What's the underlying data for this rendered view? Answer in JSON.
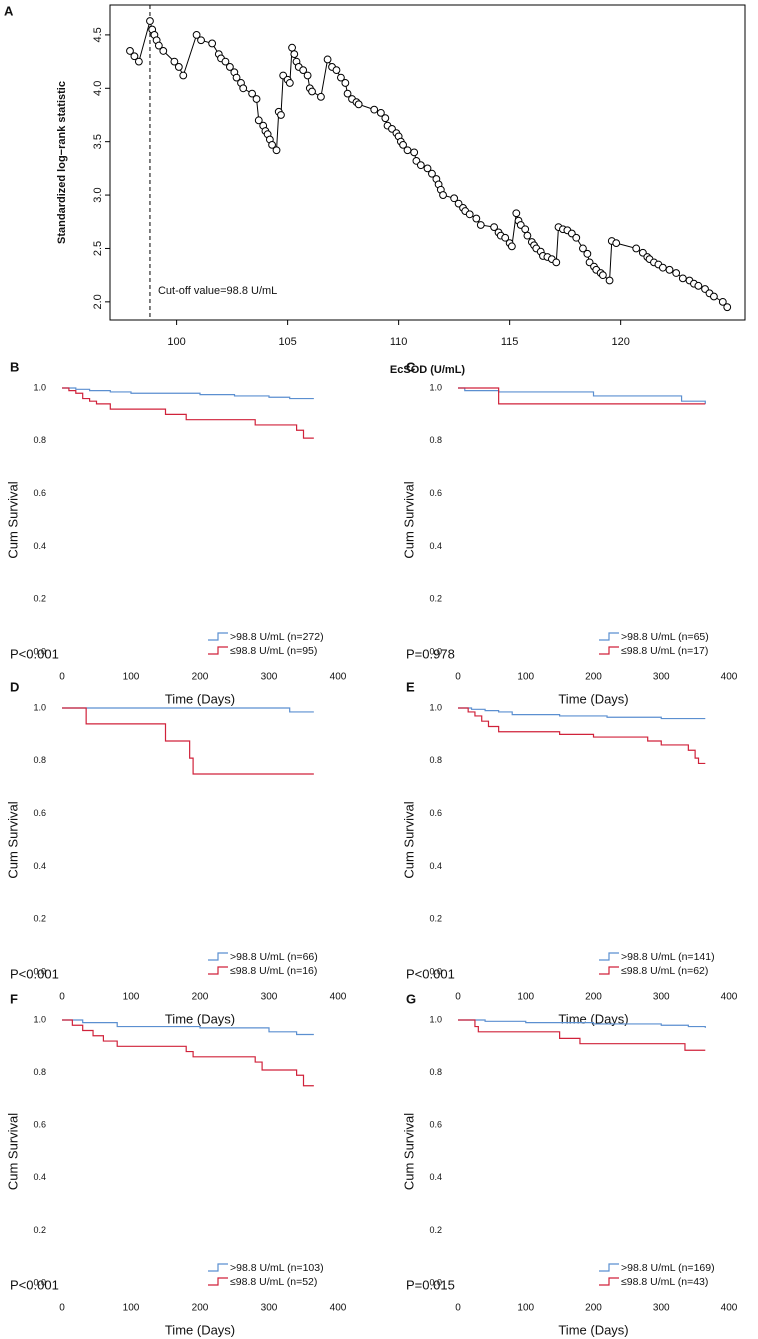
{
  "chart_data": [
    {
      "panel": "A",
      "type": "scatter",
      "xlabel": "EcSOD (U/mL)",
      "ylabel": "Standardized log−rank statistic",
      "xlim": [
        97.0,
        125.6
      ],
      "ylim": [
        1.83,
        4.78
      ],
      "xticks": [
        100,
        105,
        110,
        115,
        120
      ],
      "yticks": [
        {
          "value": 2.0,
          "label": "2.0"
        },
        2.5,
        {
          "value": 3.0,
          "label": "3.0"
        },
        3.5,
        {
          "value": 4.0,
          "label": "4.0"
        },
        4.5
      ],
      "cutoff": 98.8,
      "annotation": "Cut-off value=98.8 U/mL",
      "color": "#000000",
      "x": [
        97.9,
        98.1,
        98.3,
        98.8,
        98.9,
        99.0,
        99.1,
        99.2,
        99.4,
        99.9,
        100.1,
        100.3,
        100.9,
        101.1,
        101.6,
        101.9,
        102.0,
        102.2,
        102.4,
        102.6,
        102.7,
        102.9,
        103.0,
        103.4,
        103.6,
        103.7,
        103.9,
        104.0,
        104.1,
        104.2,
        104.3,
        104.5,
        104.6,
        104.7,
        104.8,
        105.0,
        105.1,
        105.2,
        105.3,
        105.4,
        105.5,
        105.7,
        105.9,
        106.0,
        106.1,
        106.5,
        106.8,
        107.0,
        107.2,
        107.4,
        107.6,
        107.7,
        107.9,
        108.1,
        108.2,
        108.9,
        109.2,
        109.4,
        109.5,
        109.7,
        109.9,
        110.0,
        110.1,
        110.2,
        110.4,
        110.7,
        110.8,
        111.0,
        111.3,
        111.5,
        111.7,
        111.8,
        111.9,
        112.0,
        112.5,
        112.7,
        112.9,
        113.0,
        113.2,
        113.5,
        113.7,
        114.3,
        114.5,
        114.6,
        114.8,
        115.0,
        115.1,
        115.3,
        115.4,
        115.5,
        115.7,
        115.8,
        116.0,
        116.1,
        116.2,
        116.4,
        116.5,
        116.7,
        116.9,
        117.1,
        117.2,
        117.4,
        117.6,
        117.8,
        118.0,
        118.3,
        118.5,
        118.6,
        118.8,
        118.9,
        119.1,
        119.2,
        119.5,
        119.6,
        119.8,
        120.7,
        121.0,
        121.2,
        121.3,
        121.5,
        121.7,
        121.9,
        122.2,
        122.5,
        122.8,
        123.1,
        123.3,
        123.5,
        123.8,
        124.0,
        124.2,
        124.6,
        124.8
      ],
      "values": [
        4.35,
        4.3,
        4.25,
        4.63,
        4.55,
        4.5,
        4.45,
        4.4,
        4.35,
        4.25,
        4.2,
        4.12,
        4.5,
        4.45,
        4.42,
        4.32,
        4.28,
        4.25,
        4.2,
        4.15,
        4.1,
        4.05,
        4.0,
        3.95,
        3.9,
        3.7,
        3.65,
        3.6,
        3.57,
        3.52,
        3.47,
        3.42,
        3.78,
        3.75,
        4.12,
        4.08,
        4.05,
        4.38,
        4.32,
        4.25,
        4.2,
        4.17,
        4.12,
        4.0,
        3.97,
        3.92,
        4.27,
        4.2,
        4.17,
        4.1,
        4.05,
        3.95,
        3.9,
        3.87,
        3.85,
        3.8,
        3.77,
        3.72,
        3.65,
        3.62,
        3.58,
        3.55,
        3.5,
        3.47,
        3.42,
        3.4,
        3.32,
        3.28,
        3.25,
        3.2,
        3.15,
        3.1,
        3.05,
        3.0,
        2.97,
        2.92,
        2.88,
        2.85,
        2.82,
        2.78,
        2.72,
        2.7,
        2.65,
        2.62,
        2.6,
        2.55,
        2.52,
        2.83,
        2.76,
        2.72,
        2.68,
        2.62,
        2.56,
        2.53,
        2.5,
        2.47,
        2.43,
        2.42,
        2.4,
        2.37,
        2.7,
        2.68,
        2.67,
        2.64,
        2.6,
        2.5,
        2.45,
        2.37,
        2.33,
        2.3,
        2.27,
        2.25,
        2.2,
        2.57,
        2.55,
        2.5,
        2.46,
        2.42,
        2.4,
        2.37,
        2.35,
        2.32,
        2.3,
        2.27,
        2.22,
        2.2,
        2.17,
        2.15,
        2.12,
        2.08,
        2.05,
        2.0,
        1.95
      ]
    },
    {
      "panel": "B",
      "type": "step",
      "xlabel": "Time (Days)",
      "ylabel": "Cum Survival",
      "pvalue": "P<0.001",
      "xlim": [
        0,
        400
      ],
      "ylim": [
        0,
        1
      ],
      "xticks": [
        0,
        100,
        200,
        300,
        400
      ],
      "yticks": [
        {
          "value": 0,
          "label": "0.0"
        },
        0.2,
        0.4,
        0.6,
        0.8,
        {
          "value": 1,
          "label": "1.0"
        }
      ],
      "series": [
        {
          "name": ">98.8 U/mL (n=272)",
          "color": "#5b8fd0",
          "x": [
            0,
            20,
            40,
            70,
            100,
            150,
            200,
            250,
            300,
            330,
            365
          ],
          "values": [
            1,
            0.995,
            0.99,
            0.985,
            0.98,
            0.98,
            0.975,
            0.97,
            0.965,
            0.96,
            0.96
          ]
        },
        {
          "name": "≤98.8 U/mL (n=95)",
          "color": "#d0223a",
          "x": [
            0,
            10,
            20,
            30,
            40,
            50,
            70,
            150,
            180,
            280,
            340,
            350,
            365
          ],
          "values": [
            1,
            0.99,
            0.98,
            0.96,
            0.95,
            0.94,
            0.92,
            0.9,
            0.88,
            0.86,
            0.84,
            0.81,
            0.81
          ]
        }
      ]
    },
    {
      "panel": "C",
      "type": "step",
      "xlabel": "Time (Days)",
      "ylabel": "Cum Survival",
      "pvalue": "P=0.978",
      "xlim": [
        0,
        400
      ],
      "ylim": [
        0,
        1
      ],
      "xticks": [
        0,
        100,
        200,
        300,
        400
      ],
      "yticks": [
        {
          "value": 0,
          "label": "0.0"
        },
        0.2,
        0.4,
        0.6,
        0.8,
        {
          "value": 1,
          "label": "1.0"
        }
      ],
      "series": [
        {
          "name": ">98.8 U/mL (n=65)",
          "color": "#5b8fd0",
          "x": [
            0,
            10,
            60,
            200,
            330,
            365
          ],
          "values": [
            1,
            0.99,
            0.985,
            0.97,
            0.95,
            0.94
          ]
        },
        {
          "name": "≤98.8 U/mL (n=17)",
          "color": "#d0223a",
          "x": [
            0,
            60,
            365
          ],
          "values": [
            1,
            0.94,
            0.94
          ]
        }
      ]
    },
    {
      "panel": "D",
      "type": "step",
      "xlabel": "Time (Days)",
      "ylabel": "Cum Survival",
      "pvalue": "P<0.001",
      "xlim": [
        0,
        400
      ],
      "ylim": [
        0,
        1
      ],
      "xticks": [
        0,
        100,
        200,
        300,
        400
      ],
      "yticks": [
        {
          "value": 0,
          "label": "0.0"
        },
        0.2,
        0.4,
        0.6,
        0.8,
        {
          "value": 1,
          "label": "1.0"
        }
      ],
      "series": [
        {
          "name": ">98.8 U/mL (n=66)",
          "color": "#5b8fd0",
          "x": [
            0,
            330,
            365
          ],
          "values": [
            1,
            0.985,
            0.985
          ]
        },
        {
          "name": "≤98.8 U/mL (n=16)",
          "color": "#d0223a",
          "x": [
            0,
            35,
            150,
            185,
            190,
            365
          ],
          "values": [
            1,
            0.94,
            0.875,
            0.81,
            0.75,
            0.75
          ]
        }
      ]
    },
    {
      "panel": "E",
      "type": "step",
      "xlabel": "Time (Days)",
      "ylabel": "Cum Survival",
      "pvalue": "P<0.001",
      "xlim": [
        0,
        400
      ],
      "ylim": [
        0,
        1
      ],
      "xticks": [
        0,
        100,
        200,
        300,
        400
      ],
      "yticks": [
        {
          "value": 0,
          "label": "0.0"
        },
        0.2,
        0.4,
        0.6,
        0.8,
        {
          "value": 1,
          "label": "1.0"
        }
      ],
      "series": [
        {
          "name": ">98.8 U/mL (n=141)",
          "color": "#5b8fd0",
          "x": [
            0,
            20,
            40,
            60,
            80,
            150,
            220,
            300,
            365
          ],
          "values": [
            1,
            0.995,
            0.99,
            0.985,
            0.975,
            0.97,
            0.965,
            0.96,
            0.96
          ]
        },
        {
          "name": "≤98.8 U/mL (n=62)",
          "color": "#d0223a",
          "x": [
            0,
            15,
            25,
            35,
            45,
            60,
            150,
            200,
            280,
            300,
            340,
            350,
            355,
            365
          ],
          "values": [
            1,
            0.985,
            0.97,
            0.95,
            0.93,
            0.91,
            0.9,
            0.89,
            0.875,
            0.86,
            0.84,
            0.81,
            0.79,
            0.79
          ]
        }
      ]
    },
    {
      "panel": "F",
      "type": "step",
      "xlabel": "Time (Days)",
      "ylabel": "Cum Survival",
      "pvalue": "P<0.001",
      "xlim": [
        0,
        400
      ],
      "ylim": [
        0,
        1
      ],
      "xticks": [
        0,
        100,
        200,
        300,
        400
      ],
      "yticks": [
        {
          "value": 0,
          "label": "0.0"
        },
        0.2,
        0.4,
        0.6,
        0.8,
        {
          "value": 1,
          "label": "1.0"
        }
      ],
      "series": [
        {
          "name": ">98.8 U/mL (n=103)",
          "color": "#5b8fd0",
          "x": [
            0,
            30,
            80,
            200,
            300,
            340,
            365
          ],
          "values": [
            1,
            0.99,
            0.975,
            0.97,
            0.955,
            0.945,
            0.945
          ]
        },
        {
          "name": "≤98.8 U/mL (n=52)",
          "color": "#d0223a",
          "x": [
            0,
            15,
            30,
            45,
            60,
            80,
            180,
            190,
            280,
            290,
            340,
            350,
            365
          ],
          "values": [
            1,
            0.98,
            0.96,
            0.94,
            0.92,
            0.9,
            0.88,
            0.86,
            0.84,
            0.81,
            0.79,
            0.75,
            0.75
          ]
        }
      ]
    },
    {
      "panel": "G",
      "type": "step",
      "xlabel": "Time (Days)",
      "ylabel": "Cum Survival",
      "pvalue": "P=0.015",
      "xlim": [
        0,
        400
      ],
      "ylim": [
        0,
        1
      ],
      "xticks": [
        0,
        100,
        200,
        300,
        400
      ],
      "yticks": [
        {
          "value": 0,
          "label": "0.0"
        },
        0.2,
        0.4,
        0.6,
        0.8,
        {
          "value": 1,
          "label": "1.0"
        }
      ],
      "series": [
        {
          "name": ">98.8 U/mL (n=169)",
          "color": "#5b8fd0",
          "x": [
            0,
            40,
            100,
            200,
            300,
            340,
            365
          ],
          "values": [
            1,
            0.995,
            0.99,
            0.985,
            0.98,
            0.975,
            0.97
          ]
        },
        {
          "name": "≤98.8 U/mL (n=43)",
          "color": "#d0223a",
          "x": [
            0,
            25,
            30,
            150,
            180,
            335,
            365
          ],
          "values": [
            1,
            0.975,
            0.955,
            0.93,
            0.91,
            0.885,
            0.885
          ]
        }
      ]
    }
  ]
}
